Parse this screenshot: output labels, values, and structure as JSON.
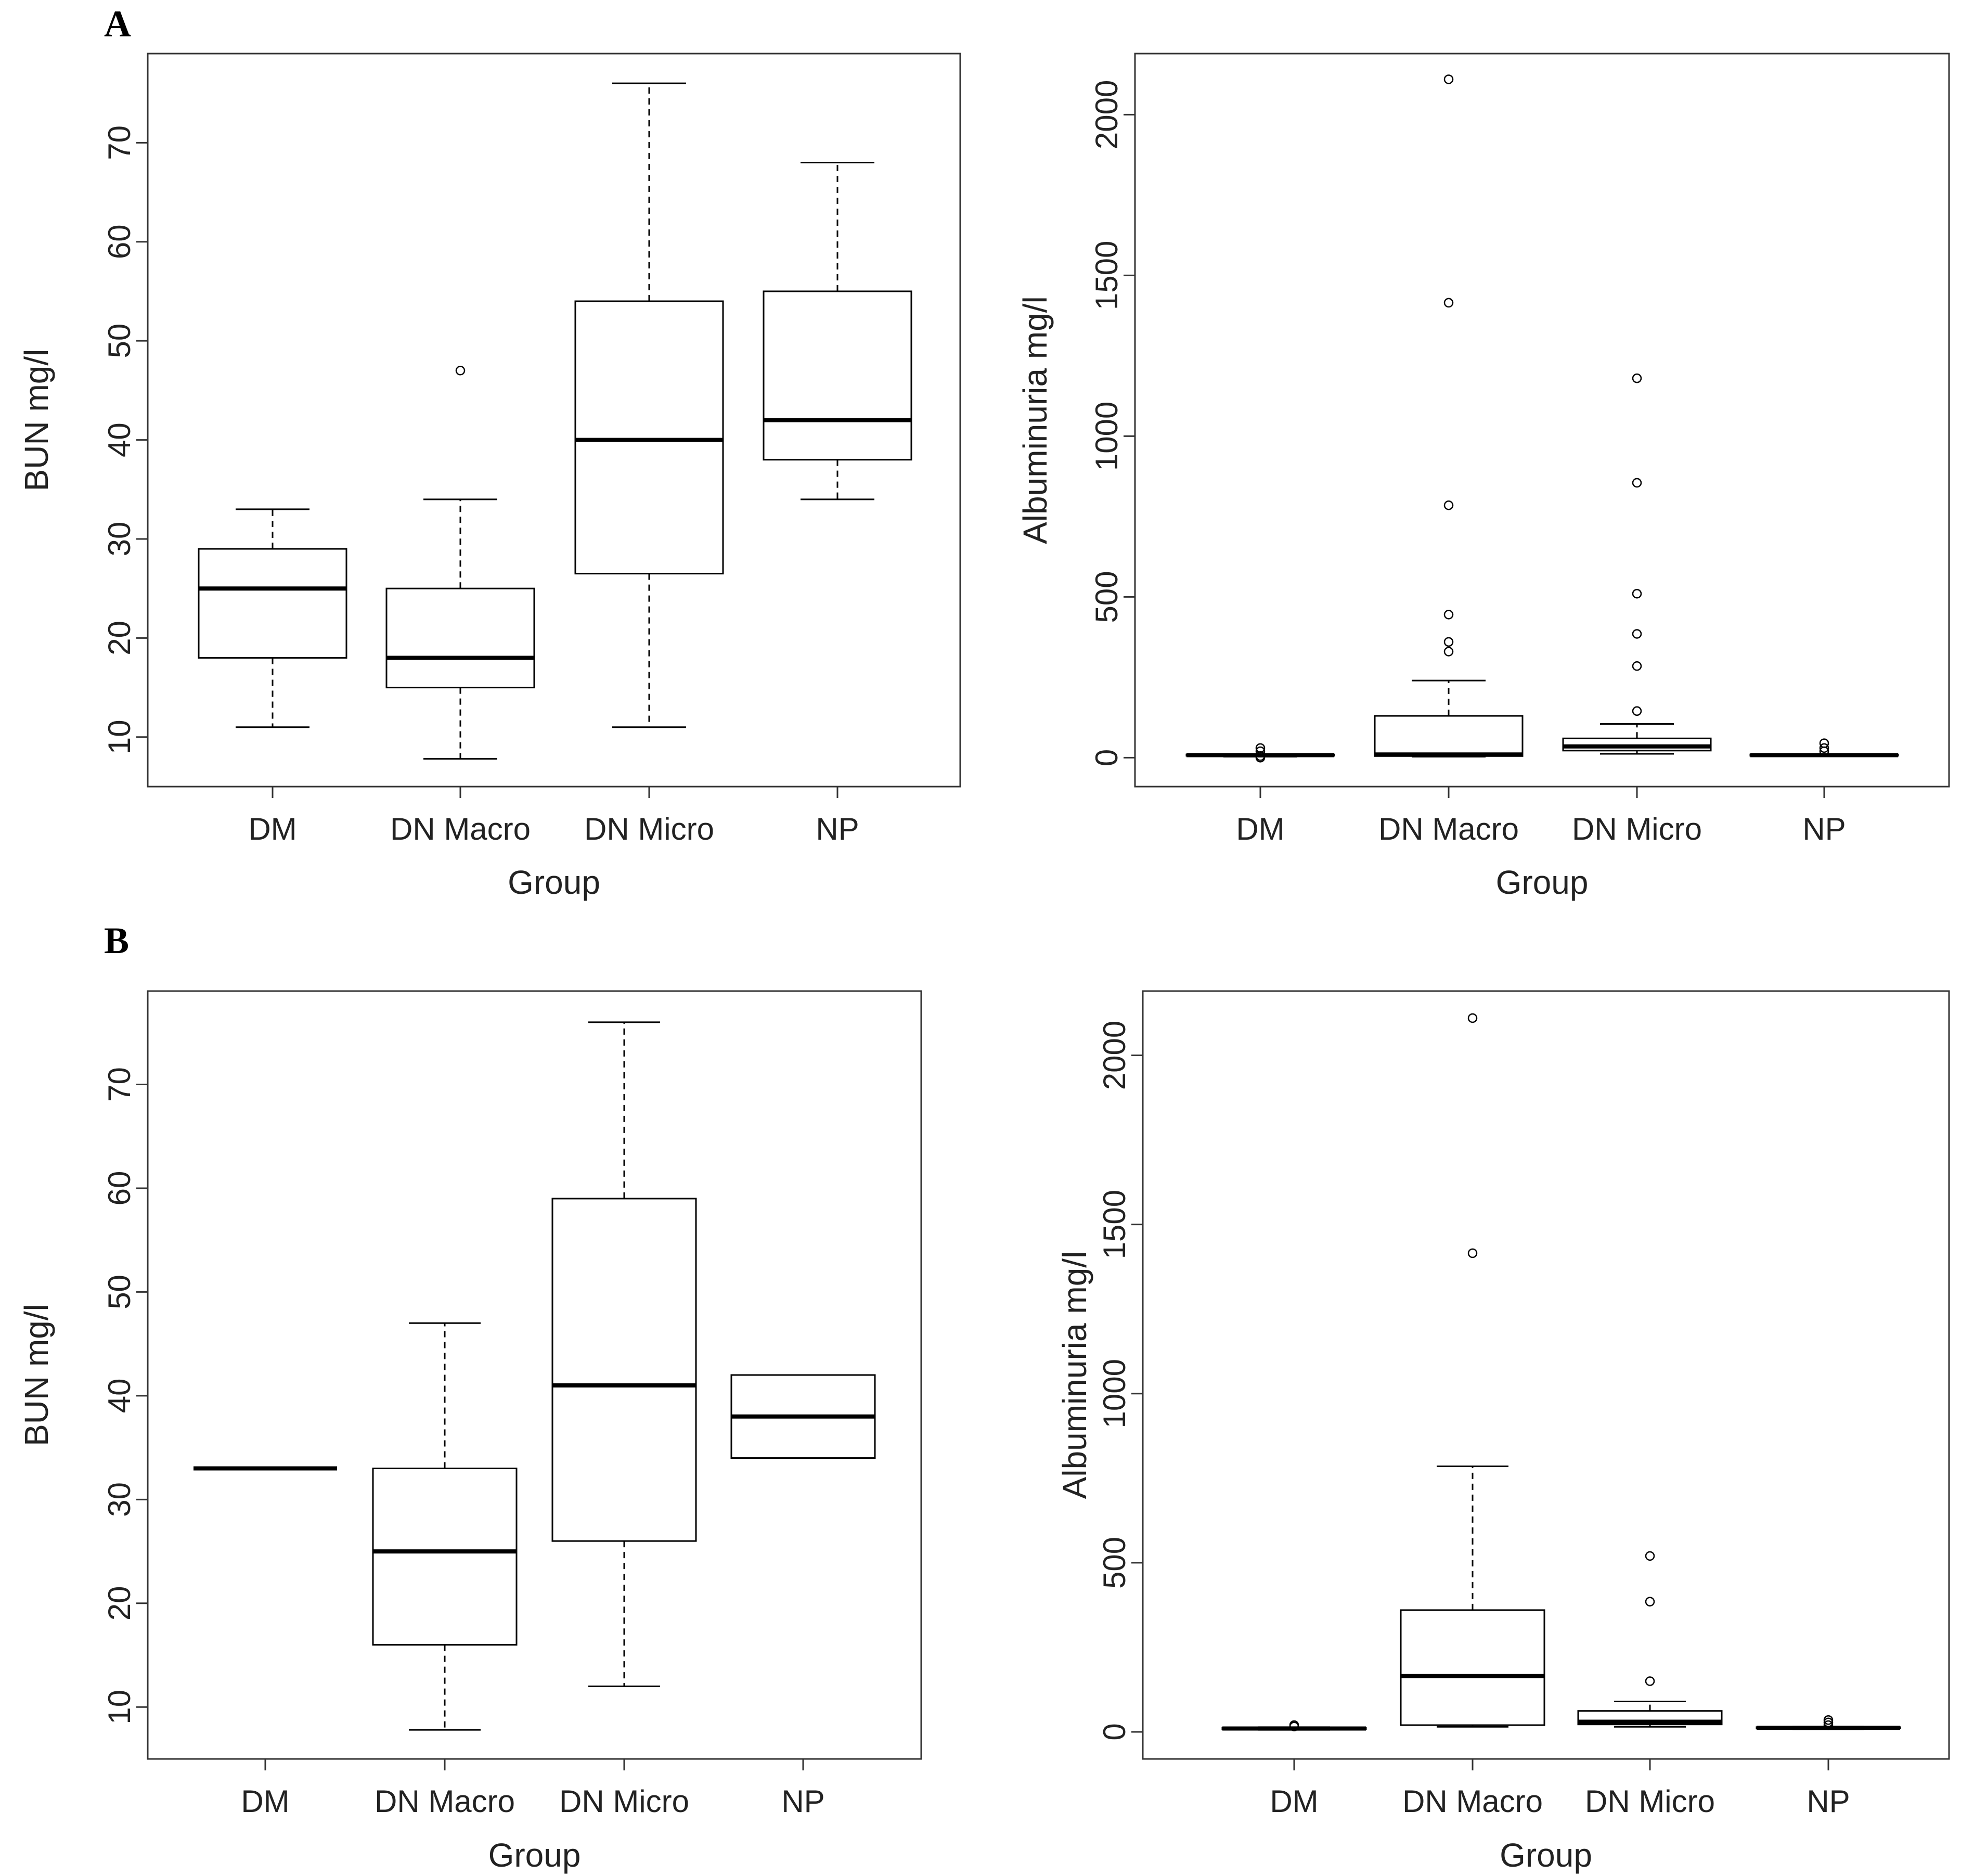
{
  "figure": {
    "panel_labels": [
      "A",
      "B"
    ]
  },
  "colors": {
    "box_stroke": "#000000",
    "median": "#000000",
    "frame": "#333333",
    "text": "#222222"
  },
  "chart_data": [
    {
      "type": "boxplot",
      "panel": "A",
      "title": "",
      "xlabel": "Group",
      "ylabel": "BUN mg/l",
      "categories": [
        "DM",
        "DN Macro",
        "DN Micro",
        "NP"
      ],
      "ylim": [
        5,
        79
      ],
      "yticks": [
        10,
        20,
        30,
        40,
        50,
        60,
        70
      ],
      "boxes": [
        {
          "whisker_low": 11,
          "q1": 18,
          "median": 25,
          "q3": 29,
          "whisker_high": 33,
          "outliers": []
        },
        {
          "whisker_low": 7.8,
          "q1": 15,
          "median": 18,
          "q3": 25,
          "whisker_high": 34,
          "outliers": [
            47
          ]
        },
        {
          "whisker_low": 11,
          "q1": 26.5,
          "median": 40,
          "q3": 54,
          "whisker_high": 76,
          "outliers": []
        },
        {
          "whisker_low": 34,
          "q1": 38,
          "median": 42,
          "q3": 55,
          "whisker_high": 68,
          "outliers": []
        }
      ]
    },
    {
      "type": "boxplot",
      "panel": "A",
      "title": "",
      "xlabel": "Group",
      "ylabel": "Albuminuria mg/l",
      "categories": [
        "DM",
        "DN Macro",
        "DN Micro",
        "NP"
      ],
      "ylim": [
        -90,
        2190
      ],
      "yticks": [
        0,
        500,
        1000,
        1500,
        2000
      ],
      "boxes": [
        {
          "whisker_low": 3,
          "q1": 6,
          "median": 8,
          "q3": 10,
          "whisker_high": 12,
          "outliers": [
            0,
            5,
            20,
            30
          ]
        },
        {
          "whisker_low": 3,
          "q1": 5,
          "median": 10,
          "q3": 130,
          "whisker_high": 240,
          "outliers": [
            330,
            360,
            445,
            785,
            1415,
            2110
          ]
        },
        {
          "whisker_low": 12,
          "q1": 22,
          "median": 35,
          "q3": 60,
          "whisker_high": 105,
          "outliers": [
            145,
            285,
            385,
            510,
            855,
            1180
          ]
        },
        {
          "whisker_low": 4,
          "q1": 6,
          "median": 8,
          "q3": 10,
          "whisker_high": 12,
          "outliers": [
            20,
            30,
            45
          ]
        }
      ]
    },
    {
      "type": "boxplot",
      "panel": "B",
      "title": "",
      "xlabel": "Group",
      "ylabel": "BUN mg/l",
      "categories": [
        "DM",
        "DN Macro",
        "DN Micro",
        "NP"
      ],
      "ylim": [
        5,
        79
      ],
      "yticks": [
        10,
        20,
        30,
        40,
        50,
        60,
        70
      ],
      "boxes": [
        {
          "whisker_low": 33,
          "q1": 33,
          "median": 33,
          "q3": 33,
          "whisker_high": 33,
          "outliers": []
        },
        {
          "whisker_low": 7.8,
          "q1": 16,
          "median": 25,
          "q3": 33,
          "whisker_high": 47,
          "outliers": []
        },
        {
          "whisker_low": 12,
          "q1": 26,
          "median": 41,
          "q3": 59,
          "whisker_high": 76,
          "outliers": []
        },
        {
          "whisker_low": 34,
          "q1": 34,
          "median": 38,
          "q3": 42,
          "whisker_high": 42,
          "outliers": []
        }
      ]
    },
    {
      "type": "boxplot",
      "panel": "B",
      "title": "",
      "xlabel": "Group",
      "ylabel": "Albuminuria mg/l",
      "categories": [
        "DM",
        "DN Macro",
        "DN Micro",
        "NP"
      ],
      "ylim": [
        -80,
        2190
      ],
      "yticks": [
        0,
        500,
        1000,
        1500,
        2000
      ],
      "boxes": [
        {
          "whisker_low": 6,
          "q1": 8,
          "median": 10,
          "q3": 12,
          "whisker_high": 14,
          "outliers": [
            16,
            20
          ]
        },
        {
          "whisker_low": 15,
          "q1": 20,
          "median": 165,
          "q3": 360,
          "whisker_high": 785,
          "outliers": [
            1415,
            2110
          ]
        },
        {
          "whisker_low": 15,
          "q1": 22,
          "median": 30,
          "q3": 62,
          "whisker_high": 90,
          "outliers": [
            150,
            385,
            520
          ]
        },
        {
          "whisker_low": 8,
          "q1": 10,
          "median": 12,
          "q3": 14,
          "whisker_high": 16,
          "outliers": [
            20,
            28,
            35
          ]
        }
      ]
    }
  ]
}
